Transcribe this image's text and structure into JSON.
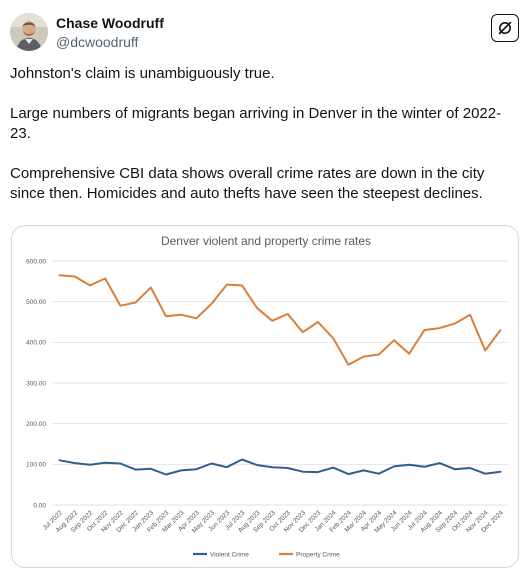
{
  "author": {
    "display_name": "Chase Woodruff",
    "handle": "@dcwoodruff",
    "avatar_icon": "avatar-photo"
  },
  "actions": {
    "grok_icon": "grok-icon"
  },
  "tweet": {
    "paragraphs": [
      "Johnston's claim is unambiguously true.",
      "Large numbers of migrants began arriving in Denver in the winter of 2022-23.",
      "Comprehensive CBI data shows overall crime rates are down in the city since then. Homicides and auto thefts have seen the steepest declines."
    ]
  },
  "colors": {
    "violent": "#2f5f8a",
    "property": "#d97f3a",
    "grid": "#d9d9d9"
  },
  "chart_data": {
    "type": "line",
    "title": "Denver violent and property crime rates",
    "xlabel": "",
    "ylabel": "",
    "ylim": [
      0,
      600
    ],
    "y_ticks": [
      "0.00",
      "100.00",
      "200.00",
      "300.00",
      "400.00",
      "500.00",
      "600.00"
    ],
    "grid": true,
    "legend_position": "bottom",
    "categories": [
      "Jul 2022",
      "Aug 2022",
      "Sep 2022",
      "Oct 2022",
      "Nov 2022",
      "Dec 2022",
      "Jan 2023",
      "Feb 2023",
      "Mar 2023",
      "Apr 2023",
      "May 2023",
      "Jun 2023",
      "Jul 2023",
      "Aug 2023",
      "Sep 2023",
      "Oct 2023",
      "Nov 2023",
      "Dec 2023",
      "Jan 2024",
      "Feb 2024",
      "Mar 2024",
      "Apr 2024",
      "May 2024",
      "Jun 2024",
      "Jul 2024",
      "Aug 2024",
      "Sep 2024",
      "Oct 2024",
      "Nov 2024",
      "Dec 2024"
    ],
    "series": [
      {
        "name": "Violent Crime",
        "values": [
          110,
          103,
          99,
          104,
          102,
          87,
          89,
          75,
          85,
          88,
          102,
          93,
          112,
          98,
          93,
          91,
          82,
          81,
          92,
          76,
          85,
          77,
          95,
          99,
          94,
          103,
          88,
          91,
          77,
          82
        ]
      },
      {
        "name": "Property Crime",
        "values": [
          565,
          562,
          540,
          557,
          490,
          498,
          535,
          464,
          468,
          459,
          495,
          542,
          540,
          484,
          453,
          470,
          425,
          450,
          410,
          345,
          365,
          370,
          405,
          372,
          430,
          435,
          446,
          468,
          380,
          430
        ]
      }
    ]
  }
}
